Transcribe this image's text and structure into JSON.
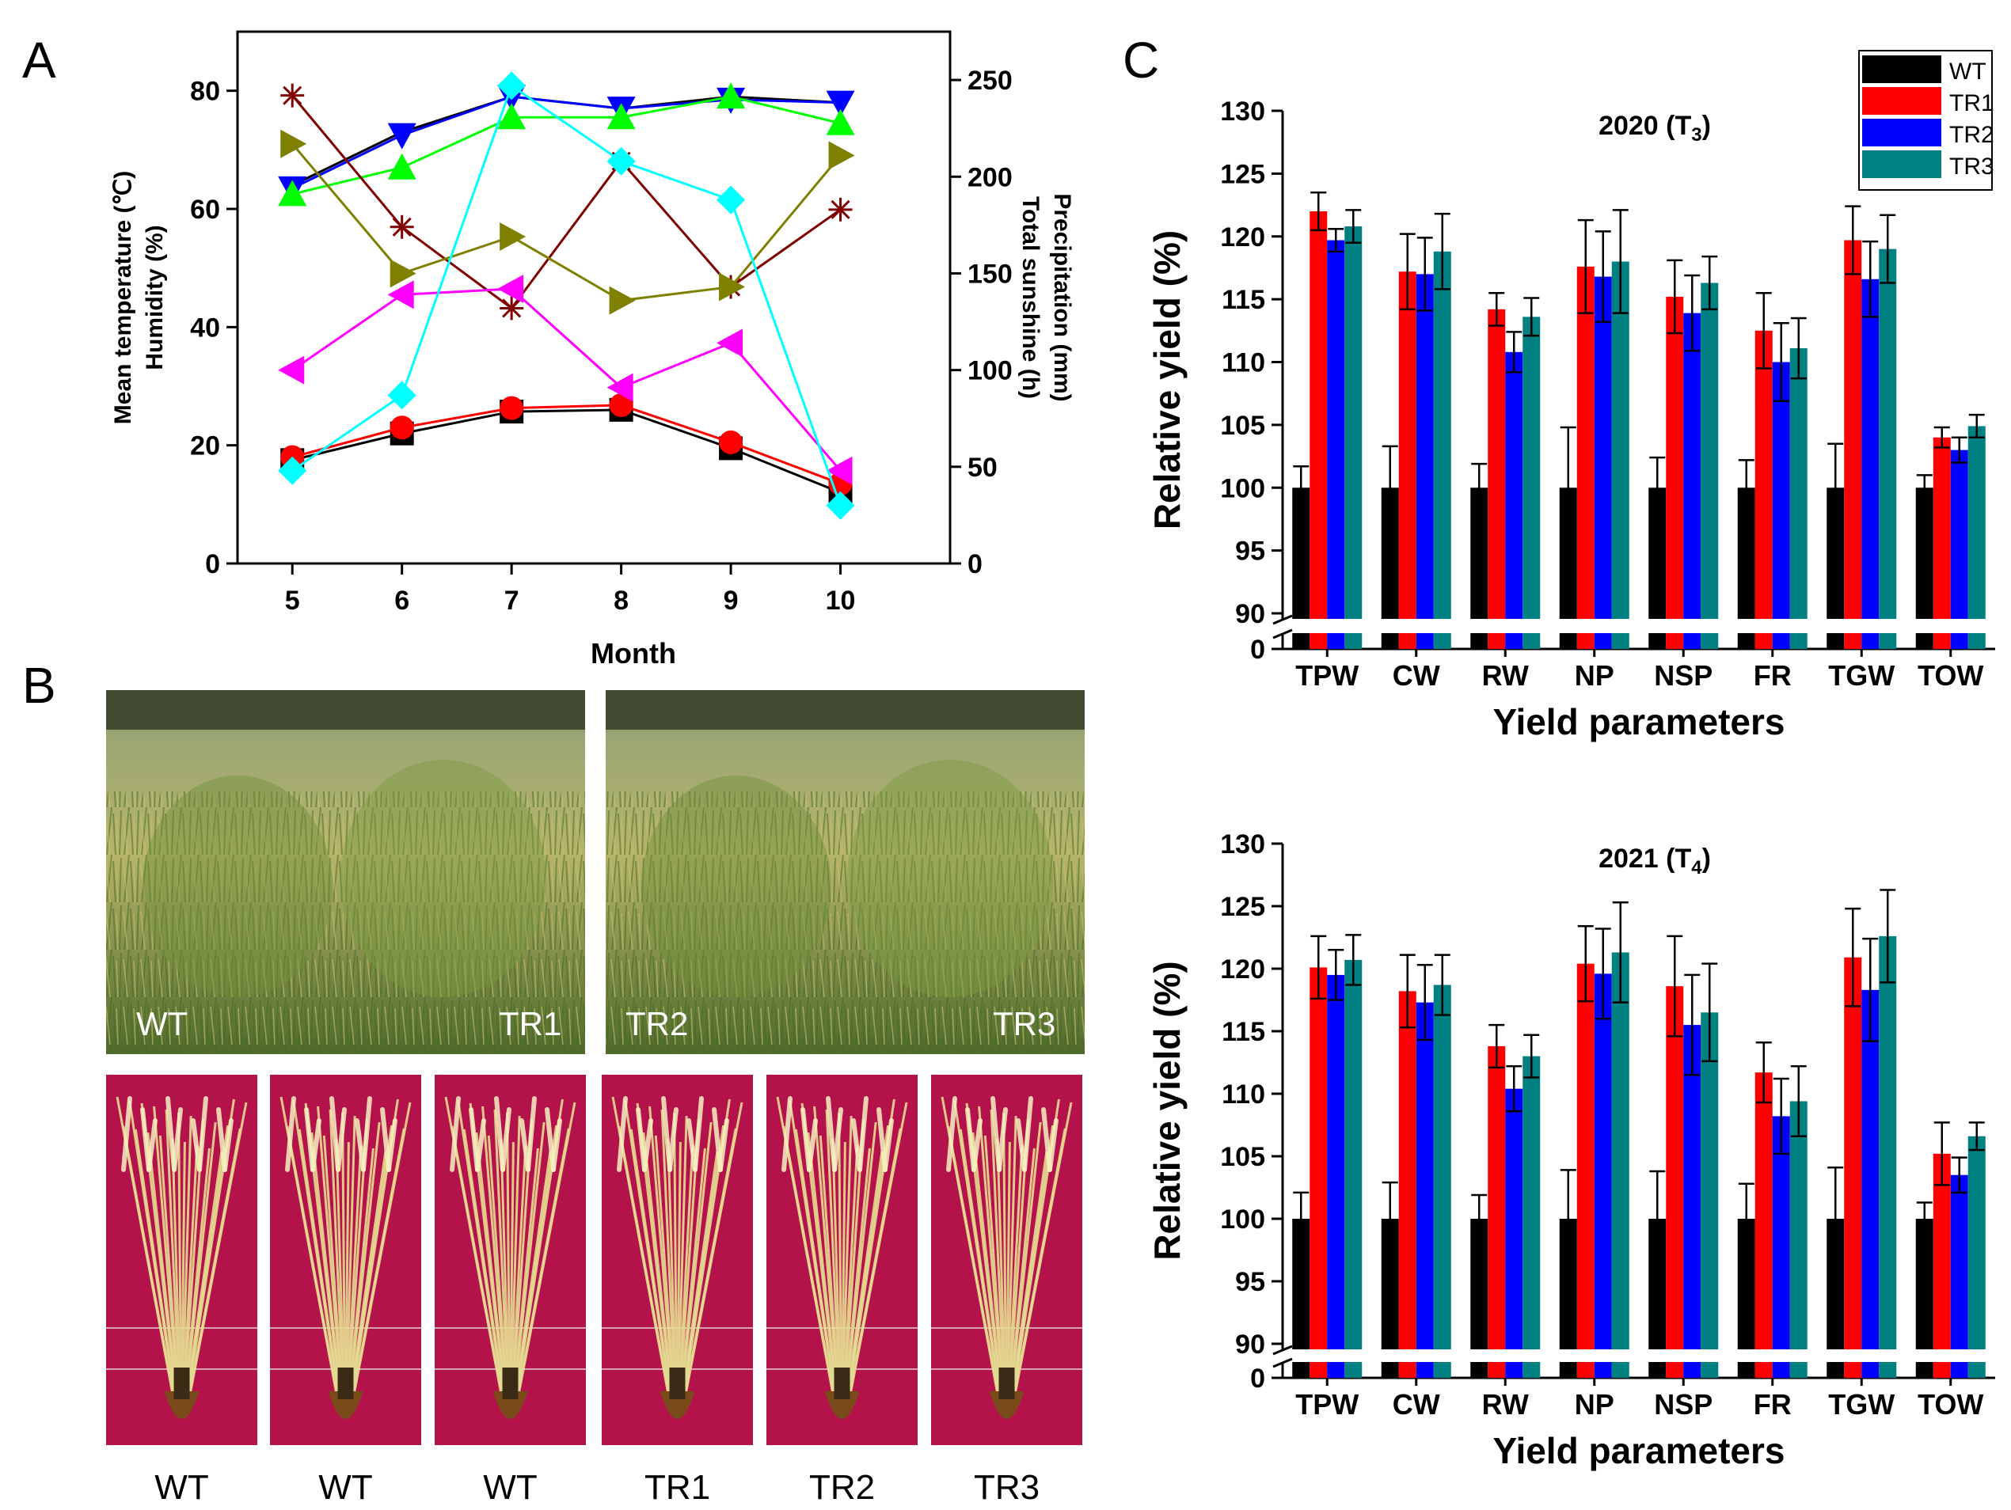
{
  "panels": {
    "A": "A",
    "B": "B",
    "C": "C"
  },
  "colors": {
    "WT": "#000000",
    "TR1": "#ff0000",
    "TR2": "#0000ff",
    "TR3": "#008080"
  },
  "panel_b": {
    "field_labels": [
      "WT",
      "TR1",
      "TR2",
      "TR3"
    ],
    "plant_labels": [
      "WT",
      "WT",
      "WT",
      "TR1",
      "TR2",
      "TR3"
    ]
  },
  "chart_data": [
    {
      "type": "line",
      "panel": "A",
      "title": "",
      "xlabel": "Month",
      "ylabel_left": [
        "Mean temperature (℃)",
        "Humidity (%)"
      ],
      "ylabel_right": [
        "Precipitation (mm)",
        "Total sunshine (h)"
      ],
      "x": [
        5,
        6,
        7,
        8,
        9,
        10
      ],
      "xlim": [
        4.5,
        11
      ],
      "ylim_left": [
        0,
        90
      ],
      "ylim_right": [
        0,
        275
      ],
      "yticks_left": [
        0,
        20,
        40,
        60,
        80
      ],
      "yticks_right": [
        0,
        50,
        100,
        150,
        200,
        250
      ],
      "series": [
        {
          "name": "Mean temperature (black squares)",
          "axis": "left",
          "marker": "square",
          "color": "#000000",
          "values": [
            17.5,
            22,
            25.7,
            26,
            19.5,
            12
          ]
        },
        {
          "name": "Mean temperature (red circles)",
          "axis": "left",
          "marker": "circle",
          "color": "#ff0000",
          "values": [
            18,
            23,
            26.3,
            26.8,
            20.5,
            13.5
          ]
        },
        {
          "name": "Humidity (black)",
          "axis": "left",
          "marker": "none",
          "color": "#000000",
          "values": [
            64,
            73,
            79,
            77,
            79,
            78
          ]
        },
        {
          "name": "Humidity (blue down-triangles)",
          "axis": "left",
          "marker": "tri-down",
          "color": "#0000ff",
          "values": [
            63.5,
            72.5,
            79,
            77,
            78.5,
            78
          ]
        },
        {
          "name": "Humidity (green up-triangles)",
          "axis": "left",
          "marker": "tri-up",
          "color": "#00ff00",
          "values": [
            62.5,
            67,
            75.5,
            75.5,
            79,
            74.5
          ]
        },
        {
          "name": "Precipitation (dark red stars)",
          "axis": "right",
          "marker": "star",
          "color": "#800000",
          "values": [
            242,
            174,
            132,
            208,
            143,
            183
          ]
        },
        {
          "name": "Precipitation (olive right-triangles)",
          "axis": "right",
          "marker": "tri-right",
          "color": "#808000",
          "values": [
            217,
            150,
            169,
            136,
            143,
            211
          ]
        },
        {
          "name": "Total sunshine (magenta left-triangles)",
          "axis": "right",
          "marker": "tri-left",
          "color": "#ff00ff",
          "values": [
            100,
            139,
            142,
            91,
            114,
            48
          ]
        },
        {
          "name": "Total sunshine (cyan diamonds)",
          "axis": "right",
          "marker": "diamond",
          "color": "#00ffff",
          "values": [
            48,
            87,
            247,
            208,
            188,
            30
          ]
        }
      ]
    },
    {
      "type": "bar",
      "panel": "C",
      "title": "2020 (T3)",
      "title_main": "2020 (T",
      "title_sub": "3",
      "title_end": ")",
      "xlabel": "Yield parameters",
      "ylabel": "Relative yield (%)",
      "categories": [
        "TPW",
        "CW",
        "RW",
        "NP",
        "NSP",
        "FR",
        "TGW",
        "TOW"
      ],
      "ylim": [
        90,
        130
      ],
      "yticks": [
        90,
        95,
        100,
        105,
        110,
        115,
        120,
        125,
        130
      ],
      "axis_break_label": "0",
      "legend": [
        "WT",
        "TR1",
        "TR2",
        "TR3"
      ],
      "legend_position": "top-right",
      "series": [
        {
          "name": "WT",
          "values": [
            100,
            100,
            100,
            100,
            100,
            100,
            100,
            100
          ],
          "errors": [
            1.7,
            3.3,
            1.9,
            4.8,
            2.4,
            2.2,
            3.5,
            1.0
          ]
        },
        {
          "name": "TR1",
          "values": [
            122.0,
            117.2,
            114.2,
            117.6,
            115.2,
            112.5,
            119.7,
            104.0
          ],
          "errors": [
            1.5,
            3.0,
            1.3,
            3.7,
            2.9,
            3.0,
            2.7,
            0.8
          ]
        },
        {
          "name": "TR2",
          "values": [
            119.7,
            117.0,
            110.8,
            116.8,
            113.9,
            110.0,
            116.6,
            103.0
          ],
          "errors": [
            0.9,
            2.9,
            1.6,
            3.6,
            3.0,
            3.1,
            3.0,
            1.0
          ]
        },
        {
          "name": "TR3",
          "values": [
            120.8,
            118.8,
            113.6,
            118.0,
            116.3,
            111.1,
            119.0,
            104.9
          ],
          "errors": [
            1.3,
            3.0,
            1.5,
            4.1,
            2.1,
            2.4,
            2.7,
            0.9
          ]
        }
      ]
    },
    {
      "type": "bar",
      "panel": "C",
      "title": "2021 (T4)",
      "title_main": "2021 (T",
      "title_sub": "4",
      "title_end": ")",
      "xlabel": "Yield parameters",
      "ylabel": "Relative yield (%)",
      "categories": [
        "TPW",
        "CW",
        "RW",
        "NP",
        "NSP",
        "FR",
        "TGW",
        "TOW"
      ],
      "ylim": [
        90,
        130
      ],
      "yticks": [
        90,
        95,
        100,
        105,
        110,
        115,
        120,
        125,
        130
      ],
      "axis_break_label": "0",
      "series": [
        {
          "name": "WT",
          "values": [
            100,
            100,
            100,
            100,
            100,
            100,
            100,
            100
          ],
          "errors": [
            2.1,
            2.9,
            1.9,
            3.9,
            3.8,
            2.8,
            4.1,
            1.3
          ]
        },
        {
          "name": "TR1",
          "values": [
            120.1,
            118.2,
            113.8,
            120.4,
            118.6,
            111.7,
            120.9,
            105.2
          ],
          "errors": [
            2.5,
            2.9,
            1.7,
            3.0,
            4.0,
            2.4,
            3.9,
            2.5
          ]
        },
        {
          "name": "TR2",
          "values": [
            119.5,
            117.3,
            110.4,
            119.6,
            115.5,
            108.2,
            118.3,
            103.5
          ],
          "errors": [
            2.0,
            3.0,
            1.8,
            3.6,
            4.0,
            3.0,
            4.1,
            1.4
          ]
        },
        {
          "name": "TR3",
          "values": [
            120.7,
            118.7,
            113.0,
            121.3,
            116.5,
            109.4,
            122.6,
            106.6
          ],
          "errors": [
            2.0,
            2.4,
            1.7,
            4.0,
            3.9,
            2.8,
            3.7,
            1.1
          ]
        }
      ]
    }
  ]
}
